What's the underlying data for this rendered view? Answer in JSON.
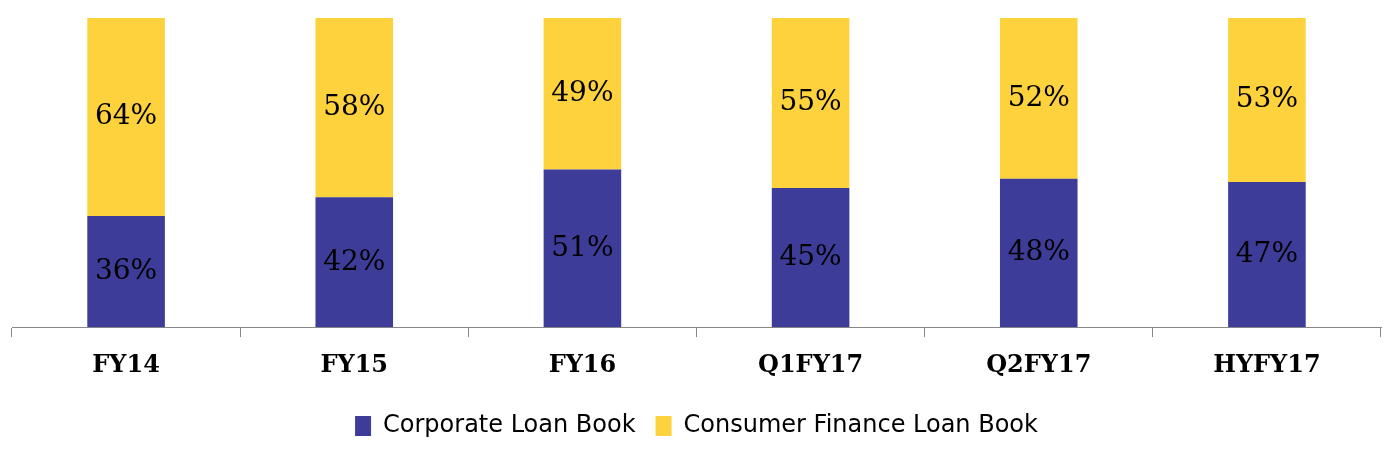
{
  "chart_data": {
    "type": "bar",
    "stacked": true,
    "categories": [
      "FY14",
      "FY15",
      "FY16",
      "Q1FY17",
      "Q2FY17",
      "HYFY17"
    ],
    "series": [
      {
        "name": "Corporate Loan Book",
        "color": "#3d3d99",
        "values": [
          36,
          42,
          51,
          45,
          48,
          47
        ],
        "value_labels": [
          "36%",
          "42%",
          "51%",
          "45%",
          "48%",
          "47%"
        ]
      },
      {
        "name": "Consumer Finance Loan Book",
        "color": "#fdd23c",
        "values": [
          64,
          58,
          49,
          55,
          52,
          53
        ],
        "value_labels": [
          "64%",
          "58%",
          "49%",
          "55%",
          "52%",
          "53%"
        ]
      }
    ],
    "ylim": [
      0,
      100
    ],
    "tick_labels": "x",
    "grid": false,
    "legend": "bottom"
  }
}
